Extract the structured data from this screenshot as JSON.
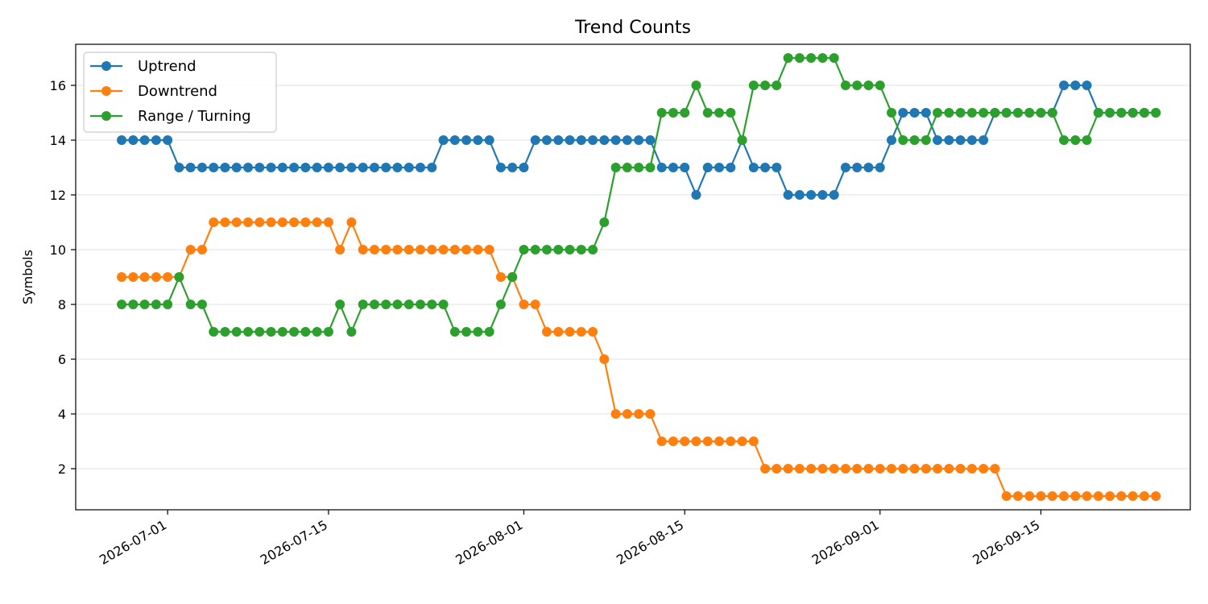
{
  "chart_data": {
    "type": "line",
    "title": "Trend Counts",
    "xlabel": "",
    "ylabel": "Symbols",
    "x_start": "2026-06-27",
    "x_step_days": 1,
    "xlim": [
      "2026-06-23",
      "2026-09-28"
    ],
    "ylim": [
      0.5,
      17.5
    ],
    "xticks": [
      "2026-07-01",
      "2026-07-15",
      "2026-08-01",
      "2026-08-15",
      "2026-09-01",
      "2026-09-15"
    ],
    "yticks": [
      2,
      4,
      6,
      8,
      10,
      12,
      14,
      16
    ],
    "grid": "y",
    "legend_position": "top-left",
    "series": [
      {
        "name": "Uptrend",
        "color": "#1f77b4",
        "values": [
          14,
          14,
          14,
          14,
          14,
          13,
          13,
          13,
          13,
          13,
          13,
          13,
          13,
          13,
          13,
          13,
          13,
          13,
          13,
          13,
          13,
          13,
          13,
          13,
          13,
          13,
          13,
          13,
          14,
          14,
          14,
          14,
          14,
          13,
          13,
          13,
          14,
          14,
          14,
          14,
          14,
          14,
          14,
          14,
          14,
          14,
          14,
          13,
          13,
          13,
          12,
          13,
          13,
          13,
          14,
          13,
          13,
          13,
          12,
          12,
          12,
          12,
          12,
          13,
          13,
          13,
          13,
          14,
          15,
          15,
          15,
          14,
          14,
          14,
          14,
          14,
          15,
          15,
          15,
          15,
          15,
          15,
          16,
          16,
          16,
          15,
          15,
          15,
          15,
          15,
          15
        ]
      },
      {
        "name": "Downtrend",
        "color": "#ff7f0e",
        "values": [
          9,
          9,
          9,
          9,
          9,
          9,
          10,
          10,
          11,
          11,
          11,
          11,
          11,
          11,
          11,
          11,
          11,
          11,
          11,
          10,
          11,
          10,
          10,
          10,
          10,
          10,
          10,
          10,
          10,
          10,
          10,
          10,
          10,
          9,
          9,
          8,
          8,
          7,
          7,
          7,
          7,
          7,
          6,
          4,
          4,
          4,
          4,
          3,
          3,
          3,
          3,
          3,
          3,
          3,
          3,
          3,
          2,
          2,
          2,
          2,
          2,
          2,
          2,
          2,
          2,
          2,
          2,
          2,
          2,
          2,
          2,
          2,
          2,
          2,
          2,
          2,
          2,
          1,
          1,
          1,
          1,
          1,
          1,
          1,
          1,
          1,
          1,
          1,
          1,
          1,
          1
        ]
      },
      {
        "name": "Range / Turning",
        "color": "#2ca02c",
        "values": [
          8,
          8,
          8,
          8,
          8,
          9,
          8,
          8,
          7,
          7,
          7,
          7,
          7,
          7,
          7,
          7,
          7,
          7,
          7,
          8,
          7,
          8,
          8,
          8,
          8,
          8,
          8,
          8,
          8,
          7,
          7,
          7,
          7,
          8,
          9,
          10,
          10,
          10,
          10,
          10,
          10,
          10,
          11,
          13,
          13,
          13,
          13,
          15,
          15,
          15,
          16,
          15,
          15,
          15,
          14,
          16,
          16,
          16,
          17,
          17,
          17,
          17,
          17,
          16,
          16,
          16,
          16,
          15,
          14,
          14,
          14,
          15,
          15,
          15,
          15,
          15,
          15,
          15,
          15,
          15,
          15,
          15,
          14,
          14,
          14,
          15,
          15,
          15,
          15,
          15,
          15
        ]
      }
    ]
  }
}
